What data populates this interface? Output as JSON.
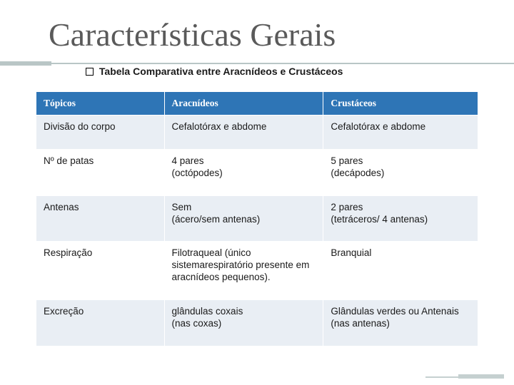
{
  "title": "Características Gerais",
  "subtitle": "Tabela Comparativa entre Aracnídeos e Crustáceos",
  "table": {
    "columns": [
      "Tópicos",
      "Aracnídeos",
      "Crustáceos"
    ],
    "rows": [
      [
        "Divisão do  corpo",
        "Cefalotórax e abdome",
        "Cefalotórax e abdome"
      ],
      [
        "Nº de patas",
        "4 pares\n(octópodes)",
        "5 pares\n(decápodes)"
      ],
      [
        "Antenas",
        "Sem\n(ácero/sem antenas)",
        "2 pares\n(tetráceros/ 4 antenas)"
      ],
      [
        "Respiração",
        "Filotraqueal (único sistemarespiratório presente em aracnídeos pequenos).",
        "Branquial"
      ],
      [
        "Excreção",
        "glândulas coxais\n(nas coxas)",
        "Glândulas  verdes ou Antenais (nas antenas)"
      ]
    ],
    "header_bg": "#2e75b6",
    "header_fg": "#ffffff",
    "band_bg": "#e9eef4",
    "font_size": 13.5
  },
  "colors": {
    "accent": "#b9c6c6",
    "title_fg": "#5a5a5a"
  }
}
